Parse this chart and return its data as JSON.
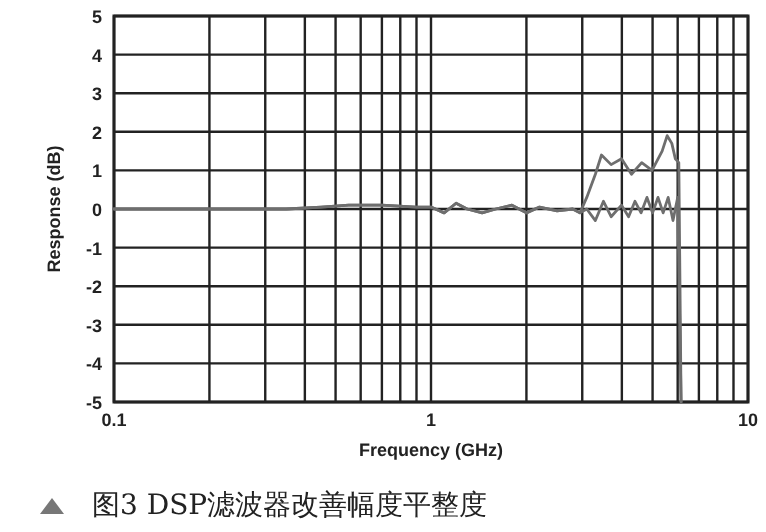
{
  "chart_data": {
    "type": "line",
    "title": "图3 DSP滤波器改善幅度平整度",
    "xlabel": "Frequency (GHz)",
    "ylabel": "Response (dB)",
    "series": [
      {
        "color": "#6e6e6e",
        "x": [
          0.1,
          0.2,
          0.35,
          0.45,
          0.55,
          0.7,
          0.9,
          1.0,
          1.1,
          1.2,
          1.3,
          1.45,
          1.6,
          1.8,
          2.0,
          2.2,
          2.5,
          2.8,
          2.95,
          3.1,
          3.3,
          3.45,
          3.7,
          3.99,
          4.29,
          4.62,
          4.98,
          5.36,
          5.56,
          5.75,
          5.9,
          6.05,
          6.15
        ],
        "values": [
          0,
          0,
          0,
          0.05,
          0.1,
          0.1,
          0.05,
          0.05,
          -0.1,
          0.15,
          0,
          -0.1,
          0,
          0.1,
          -0.1,
          0.05,
          -0.05,
          0,
          -0.1,
          0.3,
          0.9,
          1.4,
          1.15,
          1.3,
          0.9,
          1.2,
          1.0,
          1.5,
          1.9,
          1.7,
          1.3,
          1.2,
          -5
        ]
      },
      {
        "color": "#6e6e6e",
        "x": [
          0.1,
          0.2,
          0.35,
          0.45,
          0.55,
          0.7,
          0.9,
          1.0,
          1.1,
          1.2,
          1.3,
          1.45,
          1.6,
          1.8,
          2.0,
          2.2,
          2.5,
          2.8,
          2.95,
          3.1,
          3.3,
          3.5,
          3.7,
          3.99,
          4.2,
          4.4,
          4.6,
          4.8,
          5.0,
          5.2,
          5.4,
          5.6,
          5.8,
          6.0,
          6.15
        ],
        "values": [
          0,
          0,
          0,
          0.05,
          0.1,
          0.1,
          0.05,
          0.05,
          -0.1,
          0.15,
          0,
          -0.1,
          0,
          0.1,
          -0.1,
          0.05,
          -0.05,
          0,
          -0.1,
          0,
          -0.3,
          0.2,
          -0.2,
          0.1,
          -0.2,
          0.2,
          -0.1,
          0.3,
          -0.1,
          0.3,
          -0.1,
          0.3,
          -0.3,
          0.3,
          -5
        ]
      }
    ],
    "log": "x",
    "xlim": [
      0.1,
      10
    ],
    "ylim": [
      -5,
      5
    ],
    "xticks": [
      0.1,
      {
        "value": 0.2,
        "label": null
      },
      {
        "value": 0.3,
        "label": null
      },
      {
        "value": 0.4,
        "label": null
      },
      {
        "value": 0.5,
        "label": null
      },
      {
        "value": 0.6,
        "label": null
      },
      {
        "value": 0.7,
        "label": null
      },
      {
        "value": 0.8,
        "label": null
      },
      {
        "value": 0.9,
        "label": null
      },
      1,
      {
        "value": 2,
        "label": null
      },
      {
        "value": 3,
        "label": null
      },
      {
        "value": 4,
        "label": null
      },
      {
        "value": 5,
        "label": null
      },
      {
        "value": 6,
        "label": null
      },
      {
        "value": 7,
        "label": null
      },
      {
        "value": 8,
        "label": null
      },
      {
        "value": 9,
        "label": null
      },
      10
    ],
    "yticks": [
      -5,
      -4,
      -3,
      -2,
      -1,
      0,
      1,
      2,
      3,
      4,
      5
    ],
    "grid": true
  }
}
